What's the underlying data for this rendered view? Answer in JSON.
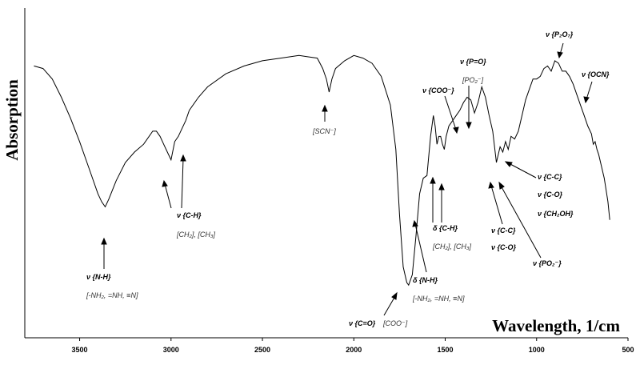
{
  "chart_data": {
    "type": "line",
    "xlabel": "Wavelength, 1/cm",
    "ylabel": "Absorption",
    "xlim": [
      3800,
      500
    ],
    "x_reversed": true,
    "xticks": [
      3500,
      3000,
      2500,
      2000,
      1500,
      1000,
      500
    ],
    "yticks": false,
    "ylim": [
      0,
      100
    ],
    "grid": false,
    "series": [
      {
        "x": [
          3750,
          3700,
          3650,
          3600,
          3550,
          3500,
          3450,
          3400,
          3380,
          3360,
          3340,
          3300,
          3250,
          3200,
          3150,
          3100,
          3080,
          3060,
          3040,
          3020,
          3000,
          2980,
          2960,
          2940,
          2920,
          2900,
          2850,
          2800,
          2700,
          2600,
          2500,
          2400,
          2300,
          2200,
          2170,
          2150,
          2135,
          2120,
          2100,
          2050,
          2000,
          1950,
          1900,
          1850,
          1800,
          1770,
          1750,
          1730,
          1710,
          1700,
          1680,
          1660,
          1640,
          1620,
          1600,
          1580,
          1565,
          1555,
          1545,
          1535,
          1525,
          1515,
          1505,
          1495,
          1480,
          1460,
          1440,
          1420,
          1400,
          1380,
          1360,
          1340,
          1320,
          1300,
          1280,
          1260,
          1240,
          1220,
          1200,
          1185,
          1170,
          1155,
          1140,
          1120,
          1100,
          1080,
          1060,
          1040,
          1020,
          1000,
          980,
          960,
          940,
          920,
          900,
          880,
          860,
          840,
          820,
          800,
          780,
          760,
          740,
          720,
          700,
          690,
          680,
          670,
          660,
          650,
          630,
          610,
          600
        ],
        "y": [
          87,
          86,
          82,
          75,
          67,
          58,
          48,
          38,
          35,
          33,
          36,
          43,
          50,
          54,
          57,
          62,
          62,
          60,
          57,
          54,
          51,
          58,
          60,
          63,
          66,
          70,
          75,
          79,
          84,
          87,
          89,
          90,
          91,
          90,
          86,
          82,
          77,
          82,
          86,
          89,
          91,
          90,
          88,
          83,
          72,
          55,
          30,
          10,
          4,
          3,
          7,
          22,
          38,
          44,
          45,
          60,
          68,
          64,
          57,
          60,
          60,
          57,
          55,
          60,
          64,
          66,
          68,
          70,
          73,
          75,
          74,
          69,
          73,
          79,
          75,
          68,
          62,
          50,
          56,
          54,
          58,
          55,
          60,
          59,
          62,
          68,
          74,
          78,
          82,
          82,
          83,
          86,
          87,
          85,
          89,
          88,
          85,
          85,
          83,
          80,
          76,
          72,
          68,
          64,
          61,
          57,
          58,
          55,
          53,
          50,
          44,
          35,
          28
        ]
      }
    ],
    "annotations": [
      {
        "bold": "ν {N-H}",
        "sub": "[-NH₂, =NH, ≡N]",
        "x": 3370
      },
      {
        "bold": "ν {C-H}",
        "sub": "[CH₂], [CH₃]",
        "x": 2930
      },
      {
        "bold": "",
        "sub": "[SCN⁻]",
        "x": 2135
      },
      {
        "bold": "ν {C=O}",
        "sub": "[COO⁻]",
        "x": 1710
      },
      {
        "bold": "δ {N-H}",
        "sub": "[-NH₂, =NH, ≡N]",
        "x": 1640
      },
      {
        "bold": "δ {C-H}",
        "sub": "[CH₂], [CH₃]",
        "x": 1510
      },
      {
        "bold": "ν {COO⁻}",
        "sub": "",
        "x": 1410
      },
      {
        "bold": "ν {P=O}",
        "sub": "[PO₂⁻]",
        "x": 1340
      },
      {
        "bold": "ν {C-C}",
        "sub": "",
        "x": 1185
      },
      {
        "bold": "ν {C-O}",
        "sub": "",
        "x": 1185
      },
      {
        "bold": "ν {PO₂⁻}",
        "sub": "",
        "x": 1180
      },
      {
        "bold": "ν {C-C}",
        "sub": "",
        "x": 1110
      },
      {
        "bold": "ν {C-O}",
        "sub": "",
        "x": 1110
      },
      {
        "bold": "ν {CH₂OH}",
        "sub": "",
        "x": 1110
      },
      {
        "bold": "ν {P₂O₇}",
        "sub": "",
        "x": 850
      },
      {
        "bold": "ν {OCN}",
        "sub": "",
        "x": 710
      }
    ]
  }
}
